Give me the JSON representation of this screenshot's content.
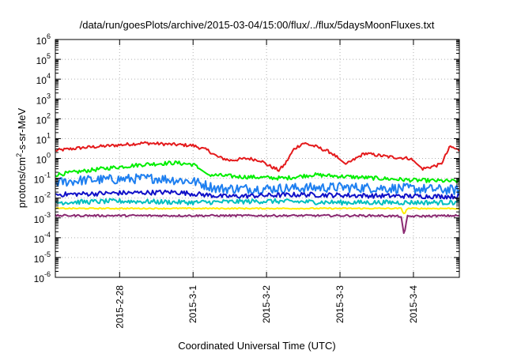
{
  "chart_data": {
    "type": "line",
    "title": "/data/run/goesPlots/archive/2015-03-04/15:00/flux/../flux/5daysMoonFluxes.txt",
    "xlabel": "Coordinated Universal Time (UTC)",
    "ylabel_parts": [
      "protons/cm",
      "2",
      "-s-sr-MeV"
    ],
    "yscale": "log",
    "ylim": [
      1e-06,
      1000000.0
    ],
    "y_ticks": [
      {
        "base": "10",
        "exp": "-6",
        "value": 1e-06
      },
      {
        "base": "10",
        "exp": "-5",
        "value": 1e-05
      },
      {
        "base": "10",
        "exp": "-4",
        "value": 0.0001
      },
      {
        "base": "10",
        "exp": "-3",
        "value": 0.001
      },
      {
        "base": "10",
        "exp": "-2",
        "value": 0.01
      },
      {
        "base": "10",
        "exp": "-1",
        "value": 0.1
      },
      {
        "base": "10",
        "exp": "0",
        "value": 1
      },
      {
        "base": "10",
        "exp": "1",
        "value": 10
      },
      {
        "base": "10",
        "exp": "2",
        "value": 100
      },
      {
        "base": "10",
        "exp": "3",
        "value": 1000
      },
      {
        "base": "10",
        "exp": "4",
        "value": 10000
      },
      {
        "base": "10",
        "exp": "5",
        "value": 100000
      },
      {
        "base": "10",
        "exp": "6",
        "value": 1000000
      }
    ],
    "xlim": [
      "2015-02-27T03:00",
      "2015-03-04T15:00"
    ],
    "x_ticks": [
      {
        "label": "2015-2-28",
        "time": "2015-02-28T00:00"
      },
      {
        "label": "2015-3-1",
        "time": "2015-03-01T00:00"
      },
      {
        "label": "2015-3-2",
        "time": "2015-03-02T00:00"
      },
      {
        "label": "2015-3-3",
        "time": "2015-03-03T00:00"
      },
      {
        "label": "2015-3-4",
        "time": "2015-03-04T00:00"
      }
    ],
    "grid": true,
    "series": [
      {
        "color": "#e41a1c",
        "noise": 0.08,
        "points": [
          [
            "2015-02-27T03:00",
            2.5
          ],
          [
            "2015-02-27T12:00",
            3.5
          ],
          [
            "2015-02-27T22:00",
            4.5
          ],
          [
            "2015-02-28T08:00",
            6
          ],
          [
            "2015-02-28T18:00",
            5
          ],
          [
            "2015-03-01T00:00",
            4.5
          ],
          [
            "2015-03-01T05:00",
            2.5
          ],
          [
            "2015-03-01T08:00",
            1.2
          ],
          [
            "2015-03-01T12:00",
            0.8
          ],
          [
            "2015-03-01T18:00",
            1
          ],
          [
            "2015-03-01T22:00",
            0.8
          ],
          [
            "2015-03-02T00:00",
            0.5
          ],
          [
            "2015-03-02T04:00",
            0.25
          ],
          [
            "2015-03-02T06:00",
            0.5
          ],
          [
            "2015-03-02T09:00",
            3
          ],
          [
            "2015-03-02T12:00",
            6
          ],
          [
            "2015-03-02T16:00",
            4
          ],
          [
            "2015-03-02T21:00",
            2
          ],
          [
            "2015-03-03T02:00",
            0.5
          ],
          [
            "2015-03-03T08:00",
            1.8
          ],
          [
            "2015-03-03T16:00",
            1.2
          ],
          [
            "2015-03-03T23:00",
            1
          ],
          [
            "2015-03-04T03:00",
            0.3
          ],
          [
            "2015-03-04T09:00",
            0.5
          ],
          [
            "2015-03-04T12:00",
            4
          ],
          [
            "2015-03-04T15:00",
            2.5
          ]
        ]
      },
      {
        "color": "#00ee00",
        "noise": 0.1,
        "points": [
          [
            "2015-02-27T03:00",
            0.15
          ],
          [
            "2015-02-27T18:00",
            0.3
          ],
          [
            "2015-02-28T08:00",
            0.5
          ],
          [
            "2015-02-28T18:00",
            0.6
          ],
          [
            "2015-03-01T00:00",
            0.5
          ],
          [
            "2015-03-01T05:00",
            0.15
          ],
          [
            "2015-03-01T15:00",
            0.12
          ],
          [
            "2015-03-02T06:00",
            0.1
          ],
          [
            "2015-03-02T15:00",
            0.15
          ],
          [
            "2015-03-03T12:00",
            0.1
          ],
          [
            "2015-03-04T00:00",
            0.08
          ],
          [
            "2015-03-04T15:00",
            0.07
          ]
        ]
      },
      {
        "color": "#1e7ff0",
        "noise": 0.25,
        "points": [
          [
            "2015-02-27T03:00",
            0.06
          ],
          [
            "2015-02-27T12:00",
            0.08
          ],
          [
            "2015-02-28T12:00",
            0.1
          ],
          [
            "2015-03-01T00:00",
            0.07
          ],
          [
            "2015-03-01T08:00",
            0.03
          ],
          [
            "2015-03-02T00:00",
            0.03
          ],
          [
            "2015-03-03T00:00",
            0.035
          ],
          [
            "2015-03-04T00:00",
            0.03
          ],
          [
            "2015-03-04T15:00",
            0.025
          ]
        ]
      },
      {
        "color": "#1010c8",
        "noise": 0.12,
        "points": [
          [
            "2015-02-27T03:00",
            0.015
          ],
          [
            "2015-02-28T00:00",
            0.018
          ],
          [
            "2015-02-28T18:00",
            0.02
          ],
          [
            "2015-03-01T10:00",
            0.012
          ],
          [
            "2015-03-02T12:00",
            0.015
          ],
          [
            "2015-03-03T12:00",
            0.013
          ],
          [
            "2015-03-04T15:00",
            0.012
          ]
        ]
      },
      {
        "color": "#00bfbf",
        "noise": 0.12,
        "points": [
          [
            "2015-02-27T03:00",
            0.006
          ],
          [
            "2015-02-28T00:00",
            0.007
          ],
          [
            "2015-03-01T00:00",
            0.006
          ],
          [
            "2015-03-02T00:00",
            0.007
          ],
          [
            "2015-03-03T00:00",
            0.006
          ],
          [
            "2015-03-04T15:00",
            0.006
          ]
        ]
      },
      {
        "color": "#ffee00",
        "noise": 0.03,
        "points": [
          [
            "2015-02-27T03:00",
            0.003
          ],
          [
            "2015-03-01T00:00",
            0.003
          ],
          [
            "2015-03-03T00:00",
            0.003
          ],
          [
            "2015-03-03T20:00",
            0.003
          ],
          [
            "2015-03-03T21:00",
            0.0015
          ],
          [
            "2015-03-03T22:00",
            0.003
          ],
          [
            "2015-03-04T15:00",
            0.003
          ]
        ]
      },
      {
        "color": "#8b2a72",
        "noise": 0.05,
        "points": [
          [
            "2015-02-27T03:00",
            0.0013
          ],
          [
            "2015-03-01T00:00",
            0.0013
          ],
          [
            "2015-03-03T12:00",
            0.0013
          ],
          [
            "2015-03-03T20:00",
            0.0012
          ],
          [
            "2015-03-03T21:00",
            0.00012
          ],
          [
            "2015-03-03T22:00",
            0.0012
          ],
          [
            "2015-03-04T15:00",
            0.0013
          ]
        ]
      }
    ]
  }
}
